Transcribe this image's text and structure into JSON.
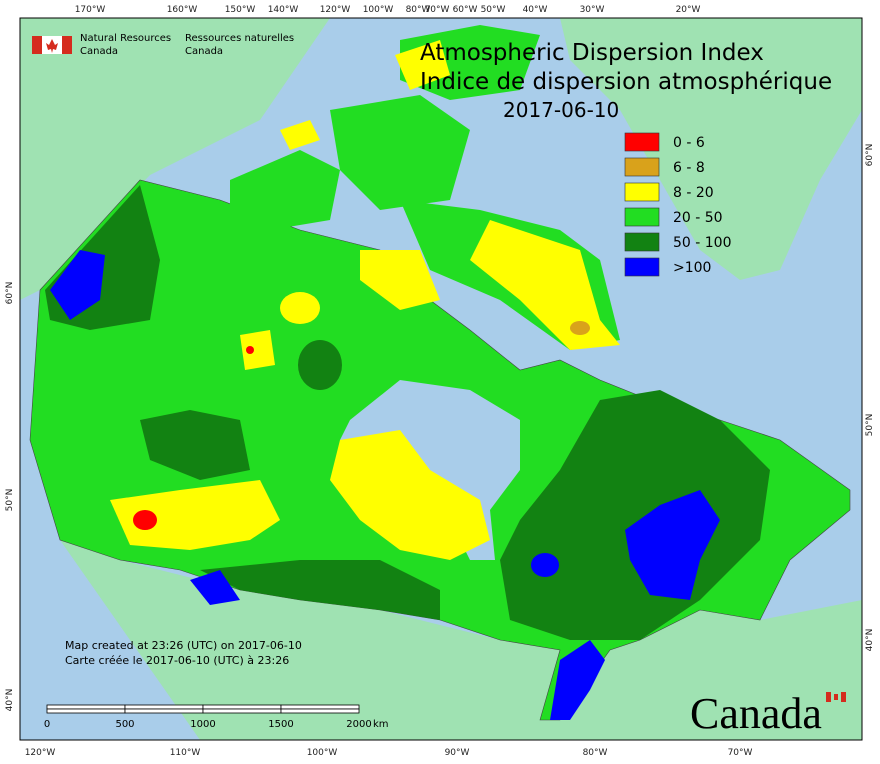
{
  "header": {
    "agency_en": [
      "Natural Resources",
      "Canada"
    ],
    "agency_fr": [
      "Ressources naturelles",
      "Canada"
    ]
  },
  "title": {
    "line1": "Atmospheric Dispersion Index",
    "line2": "Indice de dispersion atmosphérique",
    "date": "2017-06-10"
  },
  "legend": [
    {
      "label": "0 - 6",
      "color": "#ff0000"
    },
    {
      "label": "6 - 8",
      "color": "#d9a21b"
    },
    {
      "label": "8 - 20",
      "color": "#ffff00"
    },
    {
      "label": "20 - 50",
      "color": "#22dd22"
    },
    {
      "label": "50 - 100",
      "color": "#128212"
    },
    {
      "label": ">100",
      "color": "#0000ff"
    }
  ],
  "graticule": {
    "top": [
      "170°W",
      "160°W",
      "150°W",
      "140°W",
      "120°W",
      "100°W",
      "80°W",
      "70°W",
      "60°W",
      "50°W",
      "40°W",
      "30°W",
      "20°W"
    ],
    "bottom": [
      "120°W",
      "110°W",
      "100°W",
      "90°W",
      "80°W",
      "70°W"
    ],
    "left": [
      "60°N",
      "50°N",
      "40°N"
    ],
    "right": [
      "60°N",
      "50°N",
      "40°N"
    ]
  },
  "footer": {
    "created_en": "Map created at 23:26 (UTC) on 2017-06-10",
    "created_fr": "Carte créée le 2017-06-10 (UTC) à 23:26"
  },
  "scale_bar": {
    "labels": [
      "0",
      "500",
      "1000",
      "1500",
      "2000"
    ],
    "unit": "km"
  },
  "wordmark": "Canada"
}
